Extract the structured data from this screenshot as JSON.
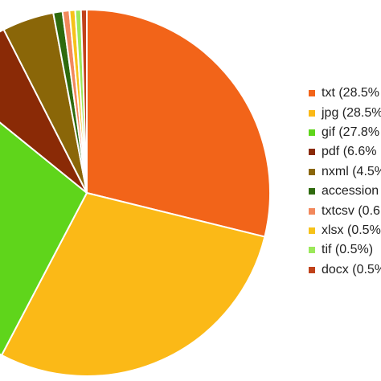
{
  "chart_data": {
    "type": "pie",
    "categories": [
      "txt",
      "jpg",
      "gif",
      "pdf",
      "nxml",
      "accession",
      "txtcsv",
      "xlsx",
      "tif",
      "docx"
    ],
    "values": [
      28.5,
      28.5,
      27.8,
      6.6,
      4.5,
      0.8,
      0.6,
      0.5,
      0.5,
      0.5
    ],
    "colors": [
      "#f26419",
      "#fbb917",
      "#5fd51b",
      "#8a2a06",
      "#8a6608",
      "#2f6a0e",
      "#f2885c",
      "#f6c21a",
      "#9be85a",
      "#c0421a"
    ],
    "legend_labels": [
      "txt (28.5%",
      "jpg (28.5%",
      "gif (27.8%",
      "pdf (6.6%",
      "nxml (4.5%",
      "accession",
      "txtcsv (0.6",
      "xlsx (0.5%",
      "tif (0.5%)",
      "docx (0.5%"
    ],
    "legend_position": "right",
    "start_angle": "top, clockwise"
  }
}
